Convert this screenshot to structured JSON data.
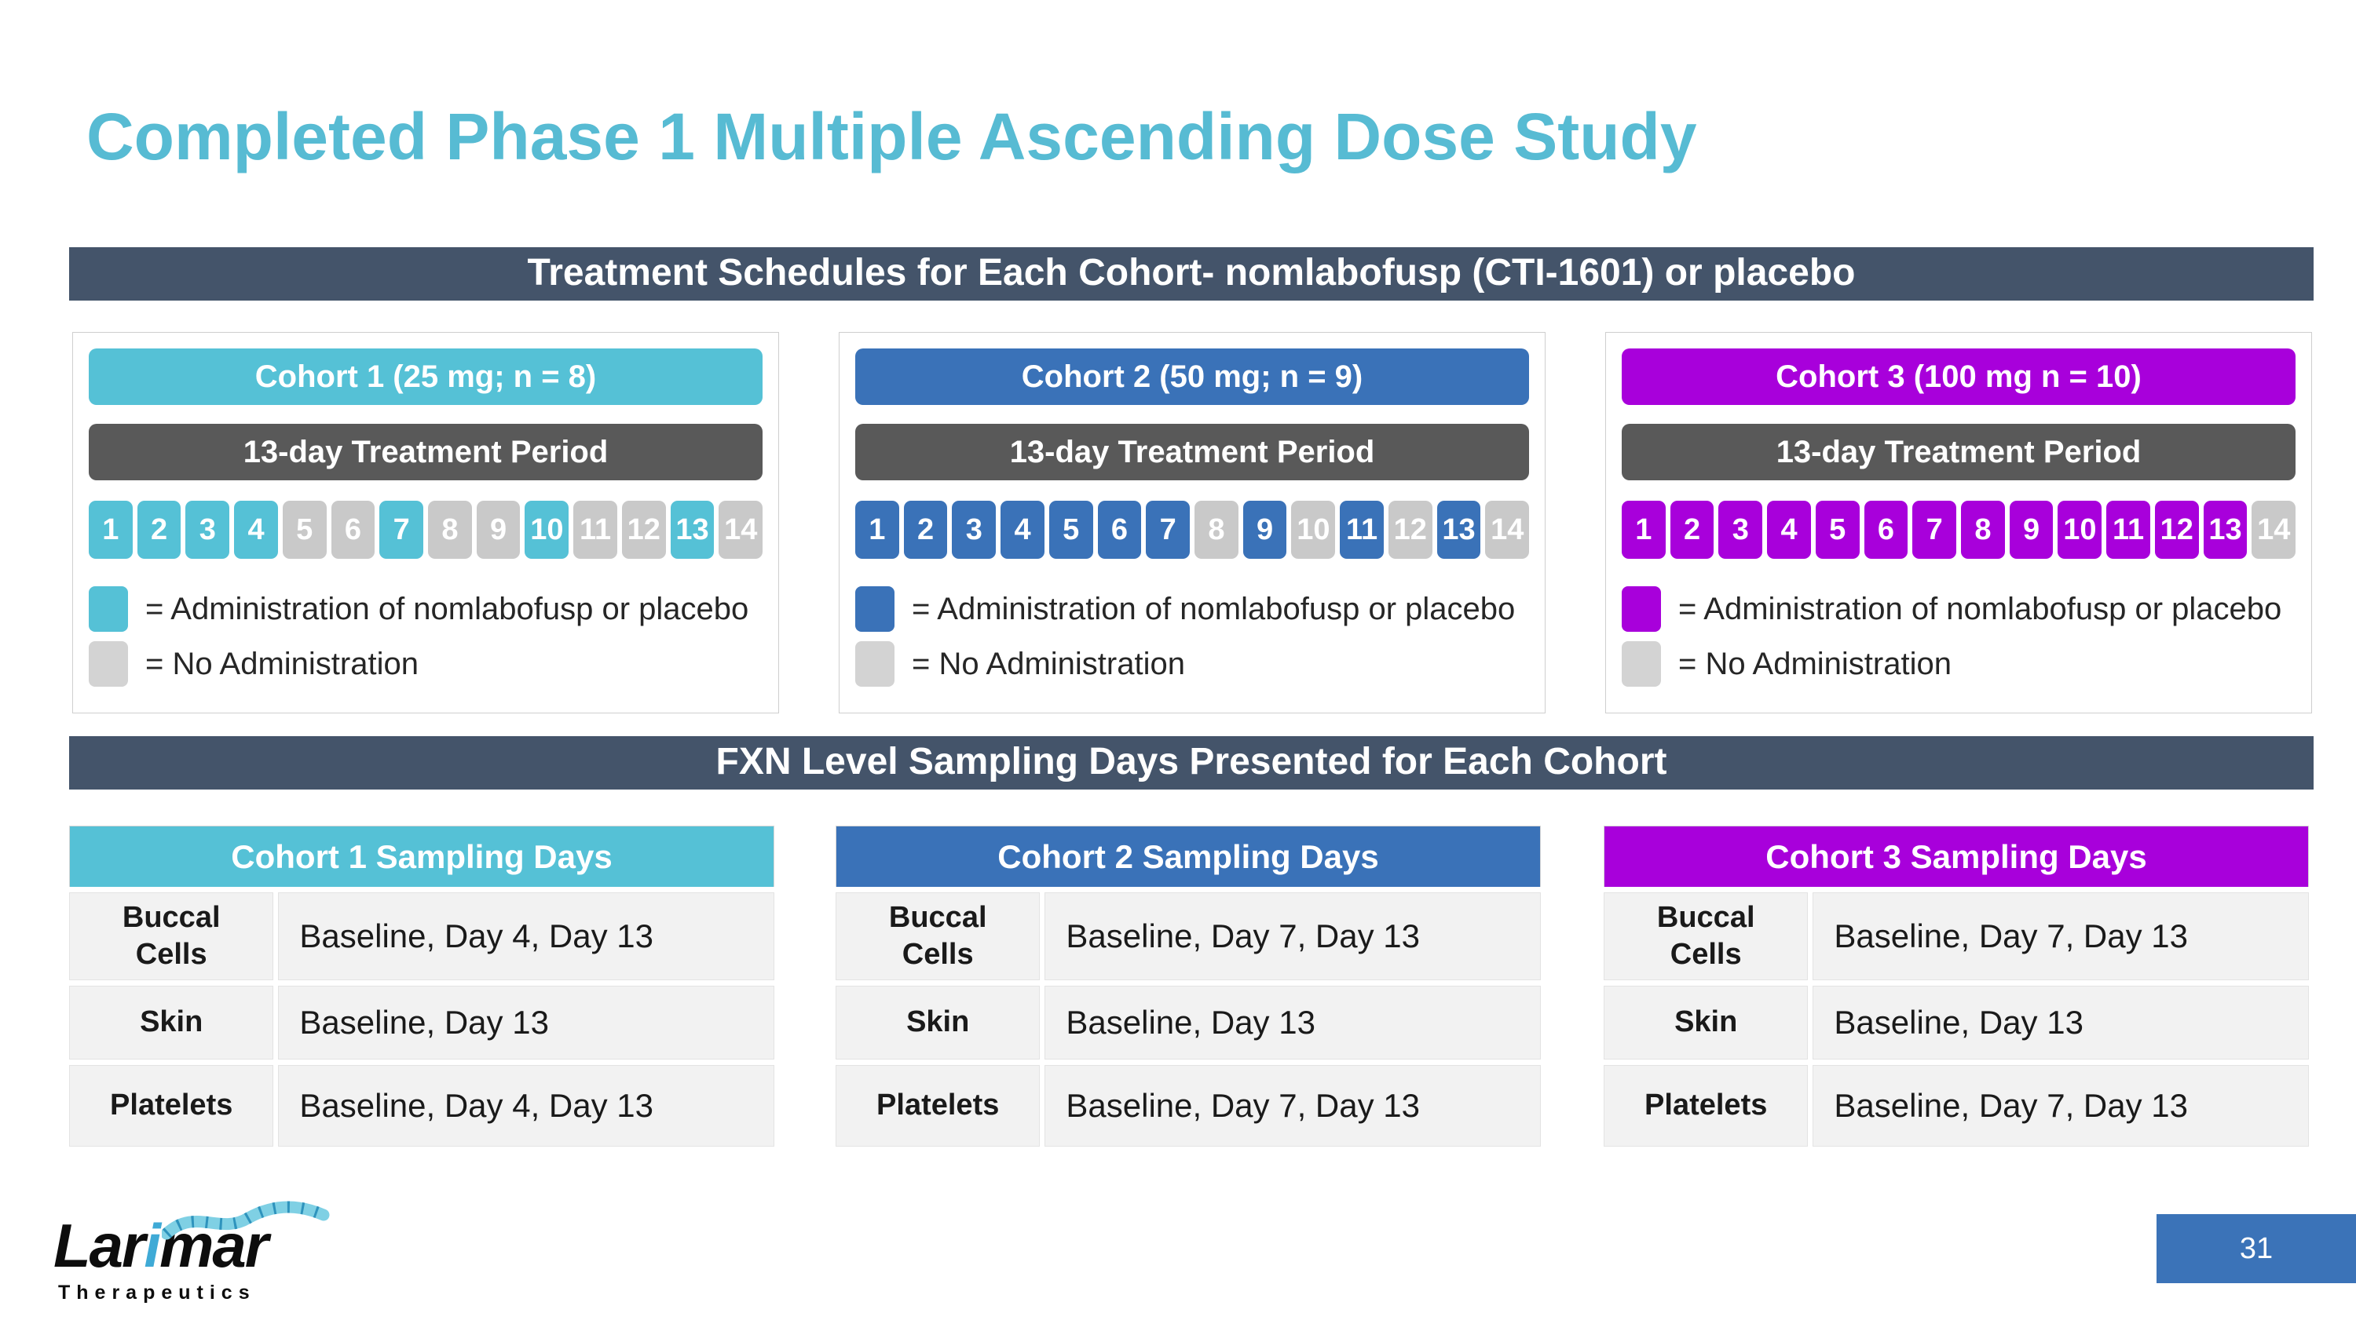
{
  "slide": {
    "title": "Completed Phase 1 Multiple Ascending Dose Study",
    "page_number": "31"
  },
  "banners": {
    "treatment": "Treatment Schedules for Each Cohort- nomlabofusp (CTI-1601) or placebo",
    "sampling": "FXN Level Sampling Days Presented for Each Cohort"
  },
  "colors": {
    "title_teal": "#57BBD3",
    "banner_slate": "#44546A",
    "cohort1_teal": "#55C1D6",
    "cohort2_blue": "#3A72B8",
    "cohort3_purple": "#A800DB",
    "treatment_bar_gray": "#595959",
    "no_admin_gray": "#C9C9C9",
    "table_row_gray": "#F2F2F2",
    "page_box_blue": "#3B73B8"
  },
  "cohorts": [
    {
      "header": "Cohort 1 (25 mg; n = 8)",
      "treatment_period": "13-day Treatment Period",
      "accent": "#55C1D6",
      "days": [
        {
          "label": "1",
          "active": true
        },
        {
          "label": "2",
          "active": true
        },
        {
          "label": "3",
          "active": true
        },
        {
          "label": "4",
          "active": true
        },
        {
          "label": "5",
          "active": false
        },
        {
          "label": "6",
          "active": false
        },
        {
          "label": "7",
          "active": true
        },
        {
          "label": "8",
          "active": false
        },
        {
          "label": "9",
          "active": false
        },
        {
          "label": "10",
          "active": true
        },
        {
          "label": "11",
          "active": false
        },
        {
          "label": "12",
          "active": false
        },
        {
          "label": "13",
          "active": true
        },
        {
          "label": "14",
          "active": false
        }
      ],
      "legend_admin": "= Administration of nomlabofusp  or placebo",
      "legend_none": "= No Administration",
      "sampling": {
        "header": "Cohort 1 Sampling Days",
        "rows": [
          {
            "label": "Buccal\nCells",
            "value": "Baseline, Day 4, Day 13"
          },
          {
            "label": "Skin",
            "value": "Baseline, Day 13"
          },
          {
            "label": "Platelets",
            "value": "Baseline, Day 4, Day 13"
          }
        ]
      }
    },
    {
      "header": "Cohort 2 (50 mg; n = 9)",
      "treatment_period": "13-day Treatment Period",
      "accent": "#3A72B8",
      "days": [
        {
          "label": "1",
          "active": true
        },
        {
          "label": "2",
          "active": true
        },
        {
          "label": "3",
          "active": true
        },
        {
          "label": "4",
          "active": true
        },
        {
          "label": "5",
          "active": true
        },
        {
          "label": "6",
          "active": true
        },
        {
          "label": "7",
          "active": true
        },
        {
          "label": "8",
          "active": false
        },
        {
          "label": "9",
          "active": true
        },
        {
          "label": "10",
          "active": false
        },
        {
          "label": "11",
          "active": true
        },
        {
          "label": "12",
          "active": false
        },
        {
          "label": "13",
          "active": true
        },
        {
          "label": "14",
          "active": false
        }
      ],
      "legend_admin": "= Administration of nomlabofusp or placebo",
      "legend_none": "= No Administration",
      "sampling": {
        "header": "Cohort 2 Sampling Days",
        "rows": [
          {
            "label": "Buccal\nCells",
            "value": "Baseline, Day 7, Day 13"
          },
          {
            "label": "Skin",
            "value": "Baseline, Day 13"
          },
          {
            "label": "Platelets",
            "value": "Baseline, Day 7, Day 13"
          }
        ]
      }
    },
    {
      "header": "Cohort 3 (100 mg n = 10)",
      "treatment_period": "13-day Treatment Period",
      "accent": "#A800DB",
      "days": [
        {
          "label": "1",
          "active": true
        },
        {
          "label": "2",
          "active": true
        },
        {
          "label": "3",
          "active": true
        },
        {
          "label": "4",
          "active": true
        },
        {
          "label": "5",
          "active": true
        },
        {
          "label": "6",
          "active": true
        },
        {
          "label": "7",
          "active": true
        },
        {
          "label": "8",
          "active": true
        },
        {
          "label": "9",
          "active": true
        },
        {
          "label": "10",
          "active": true
        },
        {
          "label": "11",
          "active": true
        },
        {
          "label": "12",
          "active": true
        },
        {
          "label": "13",
          "active": true
        },
        {
          "label": "14",
          "active": false
        }
      ],
      "legend_admin": "= Administration of nomlabofusp or placebo",
      "legend_none": "= No Administration",
      "sampling": {
        "header": "Cohort 3 Sampling Days",
        "rows": [
          {
            "label": "Buccal\nCells",
            "value": "Baseline, Day 7, Day 13"
          },
          {
            "label": "Skin",
            "value": "Baseline, Day 13"
          },
          {
            "label": "Platelets",
            "value": "Baseline, Day 7, Day 13"
          }
        ]
      }
    }
  ],
  "logo": {
    "brand_prefix": "Lar",
    "brand_i": "i",
    "brand_suffix": "mar",
    "subtext": "Therapeutics"
  }
}
